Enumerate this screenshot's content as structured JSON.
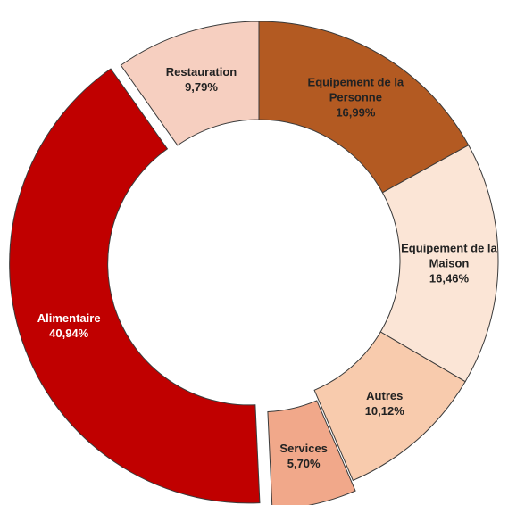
{
  "chart_data": {
    "type": "donut",
    "categories": [
      "Equipement de la Personne",
      "Equipement de la Maison",
      "Autres",
      "Services",
      "Alimentaire",
      "Restauration"
    ],
    "values": [
      16.99,
      16.46,
      10.12,
      5.7,
      40.94,
      9.79
    ],
    "value_labels": [
      "16,99%",
      "16,46%",
      "10,12%",
      "5,70%",
      "40,94%",
      "9,79%"
    ],
    "colors": [
      "#b35a22",
      "#fbe5d6",
      "#f8cbad",
      "#f1a88a",
      "#c00000",
      "#f6cfc0"
    ],
    "exploded": [
      "Services",
      "Alimentaire"
    ]
  }
}
